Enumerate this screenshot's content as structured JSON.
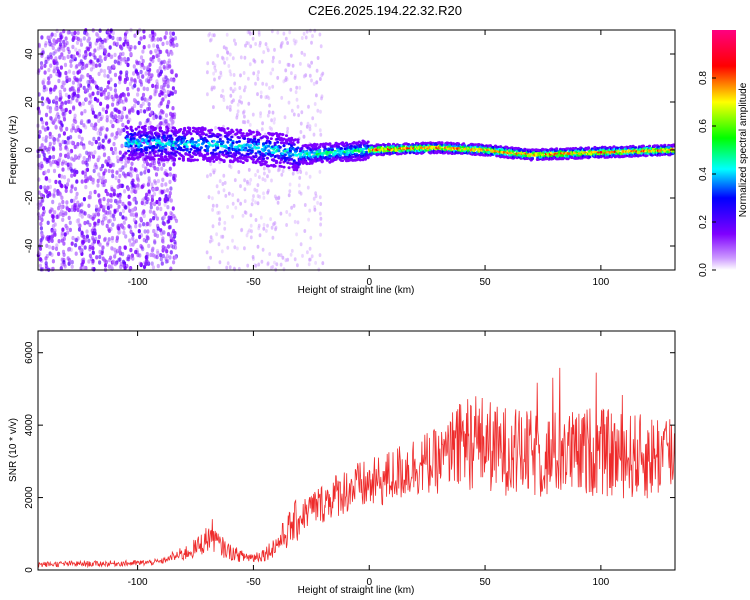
{
  "title": "C2E6.2025.194.22.32.R20",
  "chart_data": [
    {
      "type": "heatmap",
      "xlabel": "Height of straight line (km)",
      "ylabel": "Frequency (Hz)",
      "xlim": [
        -143,
        132
      ],
      "ylim": [
        -50,
        50
      ],
      "xticks": [
        -100,
        -50,
        0,
        50,
        100
      ],
      "yticks": [
        -40,
        -20,
        0,
        20,
        40
      ],
      "grid": false,
      "colorbar": {
        "label": "Normalized spectral amplitude",
        "ticks": [
          0.0,
          0.2,
          0.4,
          0.6,
          0.8
        ],
        "range": [
          0,
          1
        ],
        "colormap": [
          "#ffffff",
          "#cc99ff",
          "#7f00ff",
          "#0000ff",
          "#00ffff",
          "#00ff00",
          "#ffff00",
          "#ff0000",
          "#ff0080"
        ]
      },
      "ridge": {
        "description_x": [
          -100,
          -60,
          -40,
          -30,
          0,
          30,
          50,
          70,
          100,
          132
        ],
        "center_hz": [
          3,
          2,
          0,
          -2,
          0,
          1,
          0,
          -2,
          -1,
          0
        ]
      }
    },
    {
      "type": "line",
      "xlabel": "Height of straight line (km)",
      "ylabel": "SNR (10 * v/v)",
      "xlim": [
        -143,
        132
      ],
      "ylim": [
        0,
        6600
      ],
      "xticks": [
        -100,
        -50,
        0,
        50,
        100
      ],
      "yticks": [
        0,
        2000,
        4000,
        6000
      ],
      "grid": false,
      "color": "#ee2b2b",
      "series": [
        {
          "x": [
            -143,
            -130,
            -120,
            -110,
            -100,
            -90,
            -85,
            -80,
            -75,
            -70,
            -68,
            -65,
            -60,
            -55,
            -50,
            -45,
            -40,
            -35,
            -30,
            -25,
            -20,
            -15,
            -10,
            -5,
            0,
            5,
            10,
            15,
            20,
            25,
            30,
            35,
            40,
            45,
            50,
            55,
            60,
            65,
            70,
            75,
            80,
            85,
            90,
            95,
            100,
            105,
            110,
            115,
            120,
            125,
            130,
            132
          ],
          "values": [
            150,
            170,
            170,
            180,
            190,
            230,
            350,
            450,
            600,
            850,
            1000,
            700,
            500,
            380,
            350,
            450,
            700,
            1100,
            1450,
            1700,
            1850,
            2050,
            2200,
            2300,
            2350,
            2450,
            2600,
            2750,
            2900,
            2950,
            3000,
            3200,
            3400,
            3600,
            3500,
            3300,
            3300,
            3200,
            3200,
            3100,
            3200,
            3300,
            3150,
            3300,
            3250,
            3200,
            3150,
            3150,
            3100,
            3200,
            3250,
            3200
          ]
        }
      ]
    }
  ]
}
